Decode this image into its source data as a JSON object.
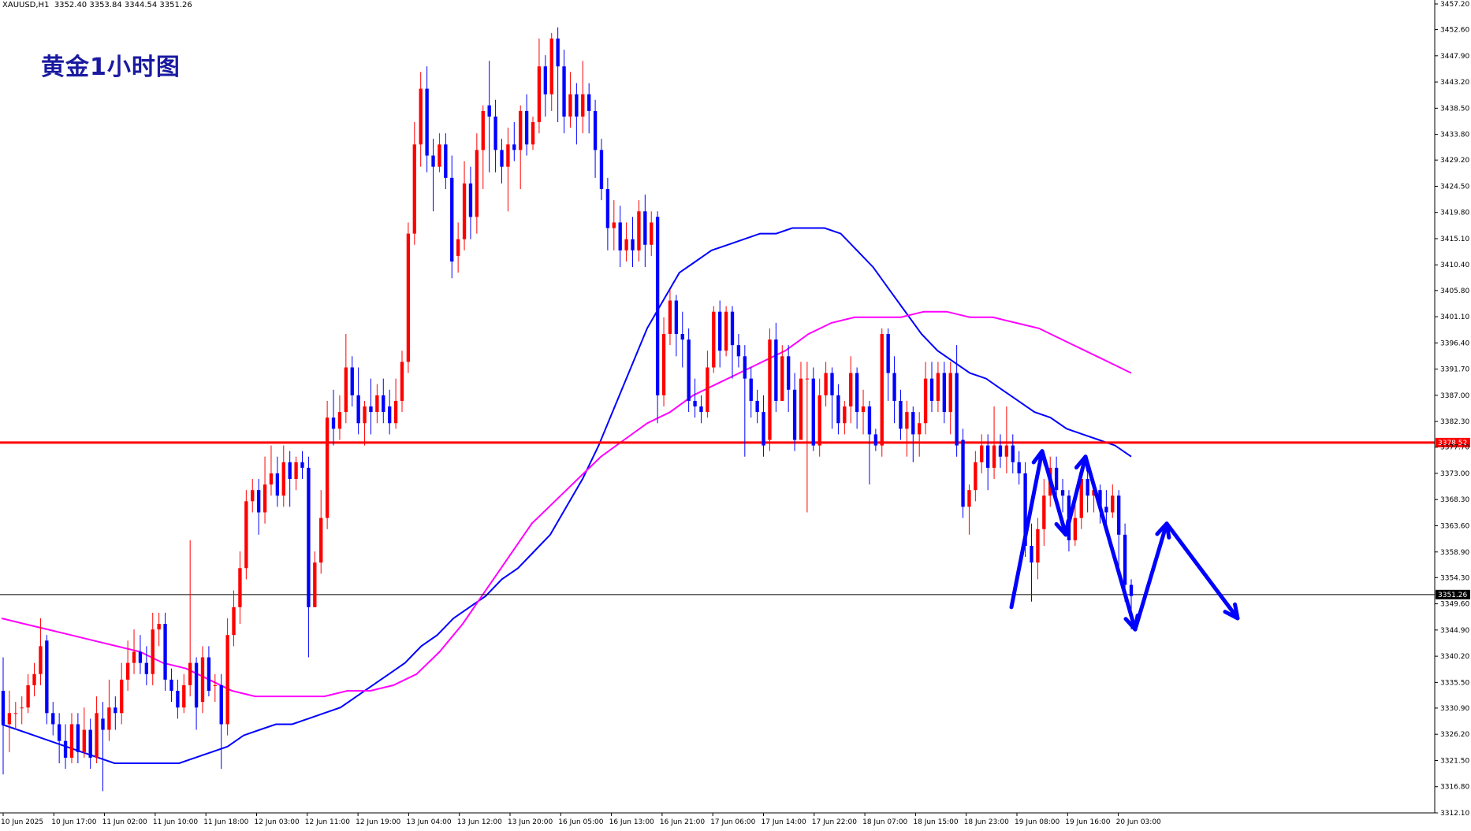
{
  "header": {
    "symbol": "XAUUSD,H1",
    "ohlc": "3352.40 3353.84 3344.54 3351.26"
  },
  "overlay_title": "黄金1小时图",
  "chart_data": {
    "type": "candlestick",
    "symbol": "XAUUSD",
    "timeframe": "H1",
    "y_ticks": [
      "3457.20",
      "3452.60",
      "3447.90",
      "3443.20",
      "3438.50",
      "3433.80",
      "3429.20",
      "3424.50",
      "3419.80",
      "3415.10",
      "3410.40",
      "3405.80",
      "3401.10",
      "3396.40",
      "3391.70",
      "3387.00",
      "3382.30",
      "3377.70",
      "3373.00",
      "3368.30",
      "3363.60",
      "3358.90",
      "3354.30",
      "3349.60",
      "3344.90",
      "3340.20",
      "3335.50",
      "3330.90",
      "3326.20",
      "3321.50",
      "3316.80",
      "3312.10"
    ],
    "x_ticks": [
      "10 Jun 2025",
      "10 Jun 17:00",
      "11 Jun 02:00",
      "11 Jun 10:00",
      "11 Jun 18:00",
      "12 Jun 03:00",
      "12 Jun 11:00",
      "12 Jun 19:00",
      "13 Jun 04:00",
      "13 Jun 12:00",
      "13 Jun 20:00",
      "16 Jun 05:00",
      "16 Jun 13:00",
      "16 Jun 21:00",
      "17 Jun 06:00",
      "17 Jun 14:00",
      "17 Jun 22:00",
      "18 Jun 07:00",
      "18 Jun 15:00",
      "18 Jun 23:00",
      "19 Jun 08:00",
      "19 Jun 16:00",
      "20 Jun 03:00"
    ],
    "ylim": [
      3312.1,
      3457.2
    ],
    "horizontal_lines": [
      {
        "label": "3378.52",
        "value": 3378.52,
        "color": "#ff0000"
      },
      {
        "label": "3351.26",
        "value": 3351.26,
        "color": "#000000"
      }
    ],
    "bull_color": "#ff0000",
    "bear_color": "#0000ff",
    "ma_fast_color": "#0000ff",
    "ma_slow_color": "#ff00ff",
    "arrow_color": "#0000ff",
    "grid": false,
    "candles": [
      [
        3334,
        3328,
        3340,
        3319
      ],
      [
        3328,
        3330,
        3334,
        3323
      ],
      [
        3330,
        3330,
        3332,
        3327
      ],
      [
        3331,
        3331,
        3333,
        3328
      ],
      [
        3331,
        3335,
        3337,
        3330
      ],
      [
        3335,
        3337,
        3339,
        3333
      ],
      [
        3337,
        3342,
        3347,
        3335
      ],
      [
        3343,
        3330,
        3344,
        3328
      ],
      [
        3330,
        3328,
        3332,
        3326
      ],
      [
        3328,
        3325,
        3330,
        3321
      ],
      [
        3325,
        3322,
        3328,
        3320
      ],
      [
        3322,
        3328,
        3330,
        3321
      ],
      [
        3328,
        3323,
        3330,
        3321
      ],
      [
        3323,
        3327,
        3331,
        3322
      ],
      [
        3327,
        3322,
        3329,
        3320
      ],
      [
        3322,
        3330,
        3333,
        3321
      ],
      [
        3329,
        3327,
        3332,
        3316
      ],
      [
        3327,
        3331,
        3336,
        3325
      ],
      [
        3331,
        3330,
        3333,
        3327
      ],
      [
        3330,
        3336,
        3339,
        3328
      ],
      [
        3336,
        3339,
        3343,
        3334
      ],
      [
        3339,
        3341,
        3345,
        3337
      ],
      [
        3341,
        3339,
        3344,
        3337
      ],
      [
        3339,
        3337,
        3342,
        3335
      ],
      [
        3337,
        3345,
        3348,
        3335
      ],
      [
        3345,
        3346,
        3348,
        3342
      ],
      [
        3346,
        3336,
        3348,
        3334
      ],
      [
        3336,
        3334,
        3338,
        3332
      ],
      [
        3334,
        3331,
        3336,
        3329
      ],
      [
        3331,
        3335,
        3337,
        3330
      ],
      [
        3335,
        3339,
        3361,
        3333
      ],
      [
        3339,
        3331,
        3340,
        3327
      ],
      [
        3332,
        3340,
        3342,
        3330
      ],
      [
        3340,
        3334,
        3342,
        3333
      ],
      [
        3335,
        3335,
        3337,
        3332
      ],
      [
        3335,
        3328,
        3337,
        3320
      ],
      [
        3328,
        3344,
        3347,
        3326
      ],
      [
        3344,
        3349,
        3352,
        3342
      ],
      [
        3349,
        3356,
        3359,
        3346
      ],
      [
        3356,
        3368,
        3370,
        3354
      ],
      [
        3368,
        3370,
        3372,
        3366
      ],
      [
        3370,
        3366,
        3372,
        3362
      ],
      [
        3366,
        3371,
        3376,
        3364
      ],
      [
        3371,
        3373,
        3378,
        3369
      ],
      [
        3373,
        3369,
        3376,
        3367
      ],
      [
        3369,
        3375,
        3378,
        3367
      ],
      [
        3375,
        3372,
        3377,
        3367
      ],
      [
        3372,
        3375,
        3376,
        3370
      ],
      [
        3375,
        3374,
        3377,
        3372
      ],
      [
        3374,
        3349,
        3376,
        3340
      ],
      [
        3349,
        3357,
        3359,
        3349
      ],
      [
        3357,
        3365,
        3370,
        3355
      ],
      [
        3365,
        3383,
        3386,
        3363
      ],
      [
        3383,
        3381,
        3388,
        3378
      ],
      [
        3381,
        3384,
        3387,
        3379
      ],
      [
        3384,
        3392,
        3398,
        3382
      ],
      [
        3392,
        3387,
        3394,
        3385
      ],
      [
        3387,
        3382,
        3392,
        3380
      ],
      [
        3382,
        3385,
        3386,
        3378
      ],
      [
        3385,
        3384,
        3390,
        3380
      ],
      [
        3384,
        3387,
        3389,
        3382
      ],
      [
        3387,
        3384,
        3390,
        3382
      ],
      [
        3385,
        3382,
        3388,
        3380
      ],
      [
        3382,
        3386,
        3390,
        3381
      ],
      [
        3386,
        3393,
        3395,
        3384
      ],
      [
        3393,
        3416,
        3418,
        3391
      ],
      [
        3416,
        3432,
        3436,
        3414
      ],
      [
        3432,
        3442,
        3445,
        3428
      ],
      [
        3442,
        3430,
        3446,
        3427
      ],
      [
        3430,
        3428,
        3433,
        3420
      ],
      [
        3428,
        3432,
        3434,
        3427
      ],
      [
        3432,
        3426,
        3434,
        3424
      ],
      [
        3426,
        3411,
        3430,
        3408
      ],
      [
        3412,
        3415,
        3418,
        3409
      ],
      [
        3415,
        3425,
        3429,
        3413
      ],
      [
        3425,
        3419,
        3428,
        3415
      ],
      [
        3419,
        3431,
        3434,
        3416
      ],
      [
        3431,
        3438,
        3439,
        3424
      ],
      [
        3439,
        3437,
        3447,
        3427
      ],
      [
        3437,
        3431,
        3440,
        3427
      ],
      [
        3431,
        3428,
        3433,
        3425
      ],
      [
        3428,
        3432,
        3435,
        3420
      ],
      [
        3432,
        3431,
        3436,
        3429
      ],
      [
        3431,
        3438,
        3439,
        3424
      ],
      [
        3438,
        3432,
        3441,
        3430
      ],
      [
        3432,
        3436,
        3437,
        3431
      ],
      [
        3436,
        3446,
        3451,
        3434
      ],
      [
        3446,
        3441,
        3448,
        3437
      ],
      [
        3441,
        3451,
        3452,
        3438
      ],
      [
        3451,
        3446,
        3453,
        3436
      ],
      [
        3446,
        3437,
        3449,
        3434
      ],
      [
        3437,
        3441,
        3445,
        3435
      ],
      [
        3441,
        3437,
        3443,
        3432
      ],
      [
        3437,
        3441,
        3447,
        3434
      ],
      [
        3441,
        3438,
        3443,
        3434
      ],
      [
        3438,
        3431,
        3440,
        3426
      ],
      [
        3431,
        3424,
        3433,
        3422
      ],
      [
        3424,
        3417,
        3426,
        3413
      ],
      [
        3417,
        3418,
        3422,
        3413
      ],
      [
        3418,
        3413,
        3421,
        3410
      ],
      [
        3413,
        3415,
        3418,
        3411
      ],
      [
        3415,
        3413,
        3419,
        3410
      ],
      [
        3413,
        3420,
        3422,
        3411
      ],
      [
        3420,
        3414,
        3423,
        3410
      ],
      [
        3414,
        3418,
        3420,
        3412
      ],
      [
        3419,
        3387,
        3420,
        3382
      ],
      [
        3387,
        3398,
        3401,
        3385
      ],
      [
        3398,
        3404,
        3406,
        3396
      ],
      [
        3404,
        3398,
        3405,
        3394
      ],
      [
        3398,
        3397,
        3402,
        3392
      ],
      [
        3397,
        3386,
        3399,
        3384
      ],
      [
        3386,
        3385,
        3390,
        3383
      ],
      [
        3385,
        3384,
        3387,
        3382
      ],
      [
        3384,
        3392,
        3395,
        3383
      ],
      [
        3392,
        3402,
        3403,
        3391
      ],
      [
        3402,
        3395,
        3404,
        3392
      ],
      [
        3395,
        3402,
        3403,
        3394
      ],
      [
        3402,
        3396,
        3403,
        3390
      ],
      [
        3396,
        3394,
        3398,
        3392
      ],
      [
        3394,
        3390,
        3396,
        3376
      ],
      [
        3390,
        3386,
        3392,
        3383
      ],
      [
        3386,
        3384,
        3388,
        3382
      ],
      [
        3384,
        3378,
        3387,
        3376
      ],
      [
        3379,
        3397,
        3399,
        3377
      ],
      [
        3397,
        3386,
        3400,
        3384
      ],
      [
        3386,
        3394,
        3396,
        3386
      ],
      [
        3394,
        3388,
        3396,
        3384
      ],
      [
        3388,
        3379,
        3391,
        3377
      ],
      [
        3379,
        3390,
        3393,
        3388
      ],
      [
        3390,
        3390,
        3393,
        3366
      ],
      [
        3390,
        3378,
        3392,
        3377
      ],
      [
        3378,
        3387,
        3390,
        3376
      ],
      [
        3387,
        3391,
        3393,
        3385
      ],
      [
        3391,
        3387,
        3392,
        3381
      ],
      [
        3387,
        3382,
        3389,
        3380
      ],
      [
        3382,
        3385,
        3386,
        3380
      ],
      [
        3385,
        3391,
        3394,
        3382
      ],
      [
        3391,
        3384,
        3392,
        3381
      ],
      [
        3384,
        3385,
        3388,
        3380
      ],
      [
        3385,
        3380,
        3386,
        3371
      ],
      [
        3380,
        3378,
        3381,
        3377
      ],
      [
        3378,
        3398,
        3399,
        3376
      ],
      [
        3398,
        3391,
        3399,
        3386
      ],
      [
        3391,
        3386,
        3394,
        3382
      ],
      [
        3386,
        3381,
        3388,
        3379
      ],
      [
        3381,
        3384,
        3386,
        3376
      ],
      [
        3384,
        3380,
        3385,
        3375
      ],
      [
        3380,
        3382,
        3384,
        3376
      ],
      [
        3382,
        3390,
        3393,
        3380
      ],
      [
        3390,
        3386,
        3393,
        3384
      ],
      [
        3386,
        3391,
        3393,
        3384
      ],
      [
        3391,
        3384,
        3393,
        3382
      ],
      [
        3384,
        3391,
        3393,
        3380
      ],
      [
        3391,
        3378,
        3396,
        3376
      ],
      [
        3379,
        3367,
        3381,
        3365
      ],
      [
        3367,
        3370,
        3371,
        3362
      ],
      [
        3370,
        3375,
        3377,
        3368
      ],
      [
        3375,
        3378,
        3380,
        3373
      ],
      [
        3378,
        3374,
        3380,
        3370
      ],
      [
        3374,
        3378,
        3385,
        3372
      ],
      [
        3378,
        3376,
        3380,
        3374
      ],
      [
        3376,
        3378,
        3385,
        3373
      ],
      [
        3378,
        3375,
        3380,
        3373
      ],
      [
        3375,
        3373,
        3377,
        3371
      ],
      [
        3373,
        3360,
        3375,
        3358
      ],
      [
        3360,
        3357,
        3364,
        3350
      ],
      [
        3357,
        3363,
        3365,
        3354
      ],
      [
        3363,
        3369,
        3372,
        3360
      ],
      [
        3369,
        3374,
        3376,
        3367
      ],
      [
        3374,
        3370,
        3376,
        3368
      ],
      [
        3370,
        3369,
        3372,
        3366
      ],
      [
        3369,
        3361,
        3370,
        3359
      ],
      [
        3361,
        3365,
        3368,
        3360
      ],
      [
        3365,
        3372,
        3374,
        3363
      ],
      [
        3372,
        3369,
        3375,
        3366
      ],
      [
        3369,
        3370,
        3372,
        3366
      ],
      [
        3370,
        3367,
        3371,
        3364
      ],
      [
        3367,
        3366,
        3370,
        3362
      ],
      [
        3366,
        3369,
        3371,
        3365
      ],
      [
        3369,
        3362,
        3370,
        3356
      ],
      [
        3362,
        3353,
        3364,
        3350
      ],
      [
        3353,
        3351,
        3354,
        3345
      ]
    ],
    "ma_fast": [
      3328,
      3327,
      3326,
      3325,
      3324,
      3323,
      3322,
      3321,
      3321,
      3321,
      3321,
      3321,
      3322,
      3323,
      3324,
      3326,
      3327,
      3328,
      3328,
      3329,
      3330,
      3331,
      3333,
      3335,
      3337,
      3339,
      3342,
      3344,
      3347,
      3349,
      3351,
      3354,
      3356,
      3359,
      3362,
      3367,
      3372,
      3378,
      3385,
      3392,
      3399,
      3404,
      3409,
      3411,
      3413,
      3414,
      3415,
      3416,
      3416,
      3417,
      3417,
      3417,
      3416,
      3413,
      3410,
      3406,
      3402,
      3398,
      3395,
      3393,
      3391,
      3390,
      3388,
      3386,
      3384,
      3383,
      3381,
      3380,
      3379,
      3378,
      3376
    ],
    "ma_slow": [
      3347,
      3346,
      3345,
      3344,
      3343,
      3342,
      3341,
      3339,
      3338,
      3336,
      3334,
      3333,
      3333,
      3333,
      3333,
      3334,
      3334,
      3335,
      3337,
      3341,
      3346,
      3352,
      3358,
      3364,
      3368,
      3372,
      3376,
      3379,
      3382,
      3384,
      3387,
      3389,
      3391,
      3393,
      3395,
      3398,
      3400,
      3401,
      3401,
      3401,
      3402,
      3402,
      3401,
      3401,
      3400,
      3399,
      3397,
      3395,
      3393,
      3391
    ],
    "arrow_path": [
      [
        3349,
        0
      ],
      [
        3377,
        0
      ],
      [
        3362,
        0
      ],
      [
        3376,
        0
      ],
      [
        3345,
        0
      ],
      [
        3364,
        0
      ],
      [
        3347,
        0
      ]
    ]
  }
}
